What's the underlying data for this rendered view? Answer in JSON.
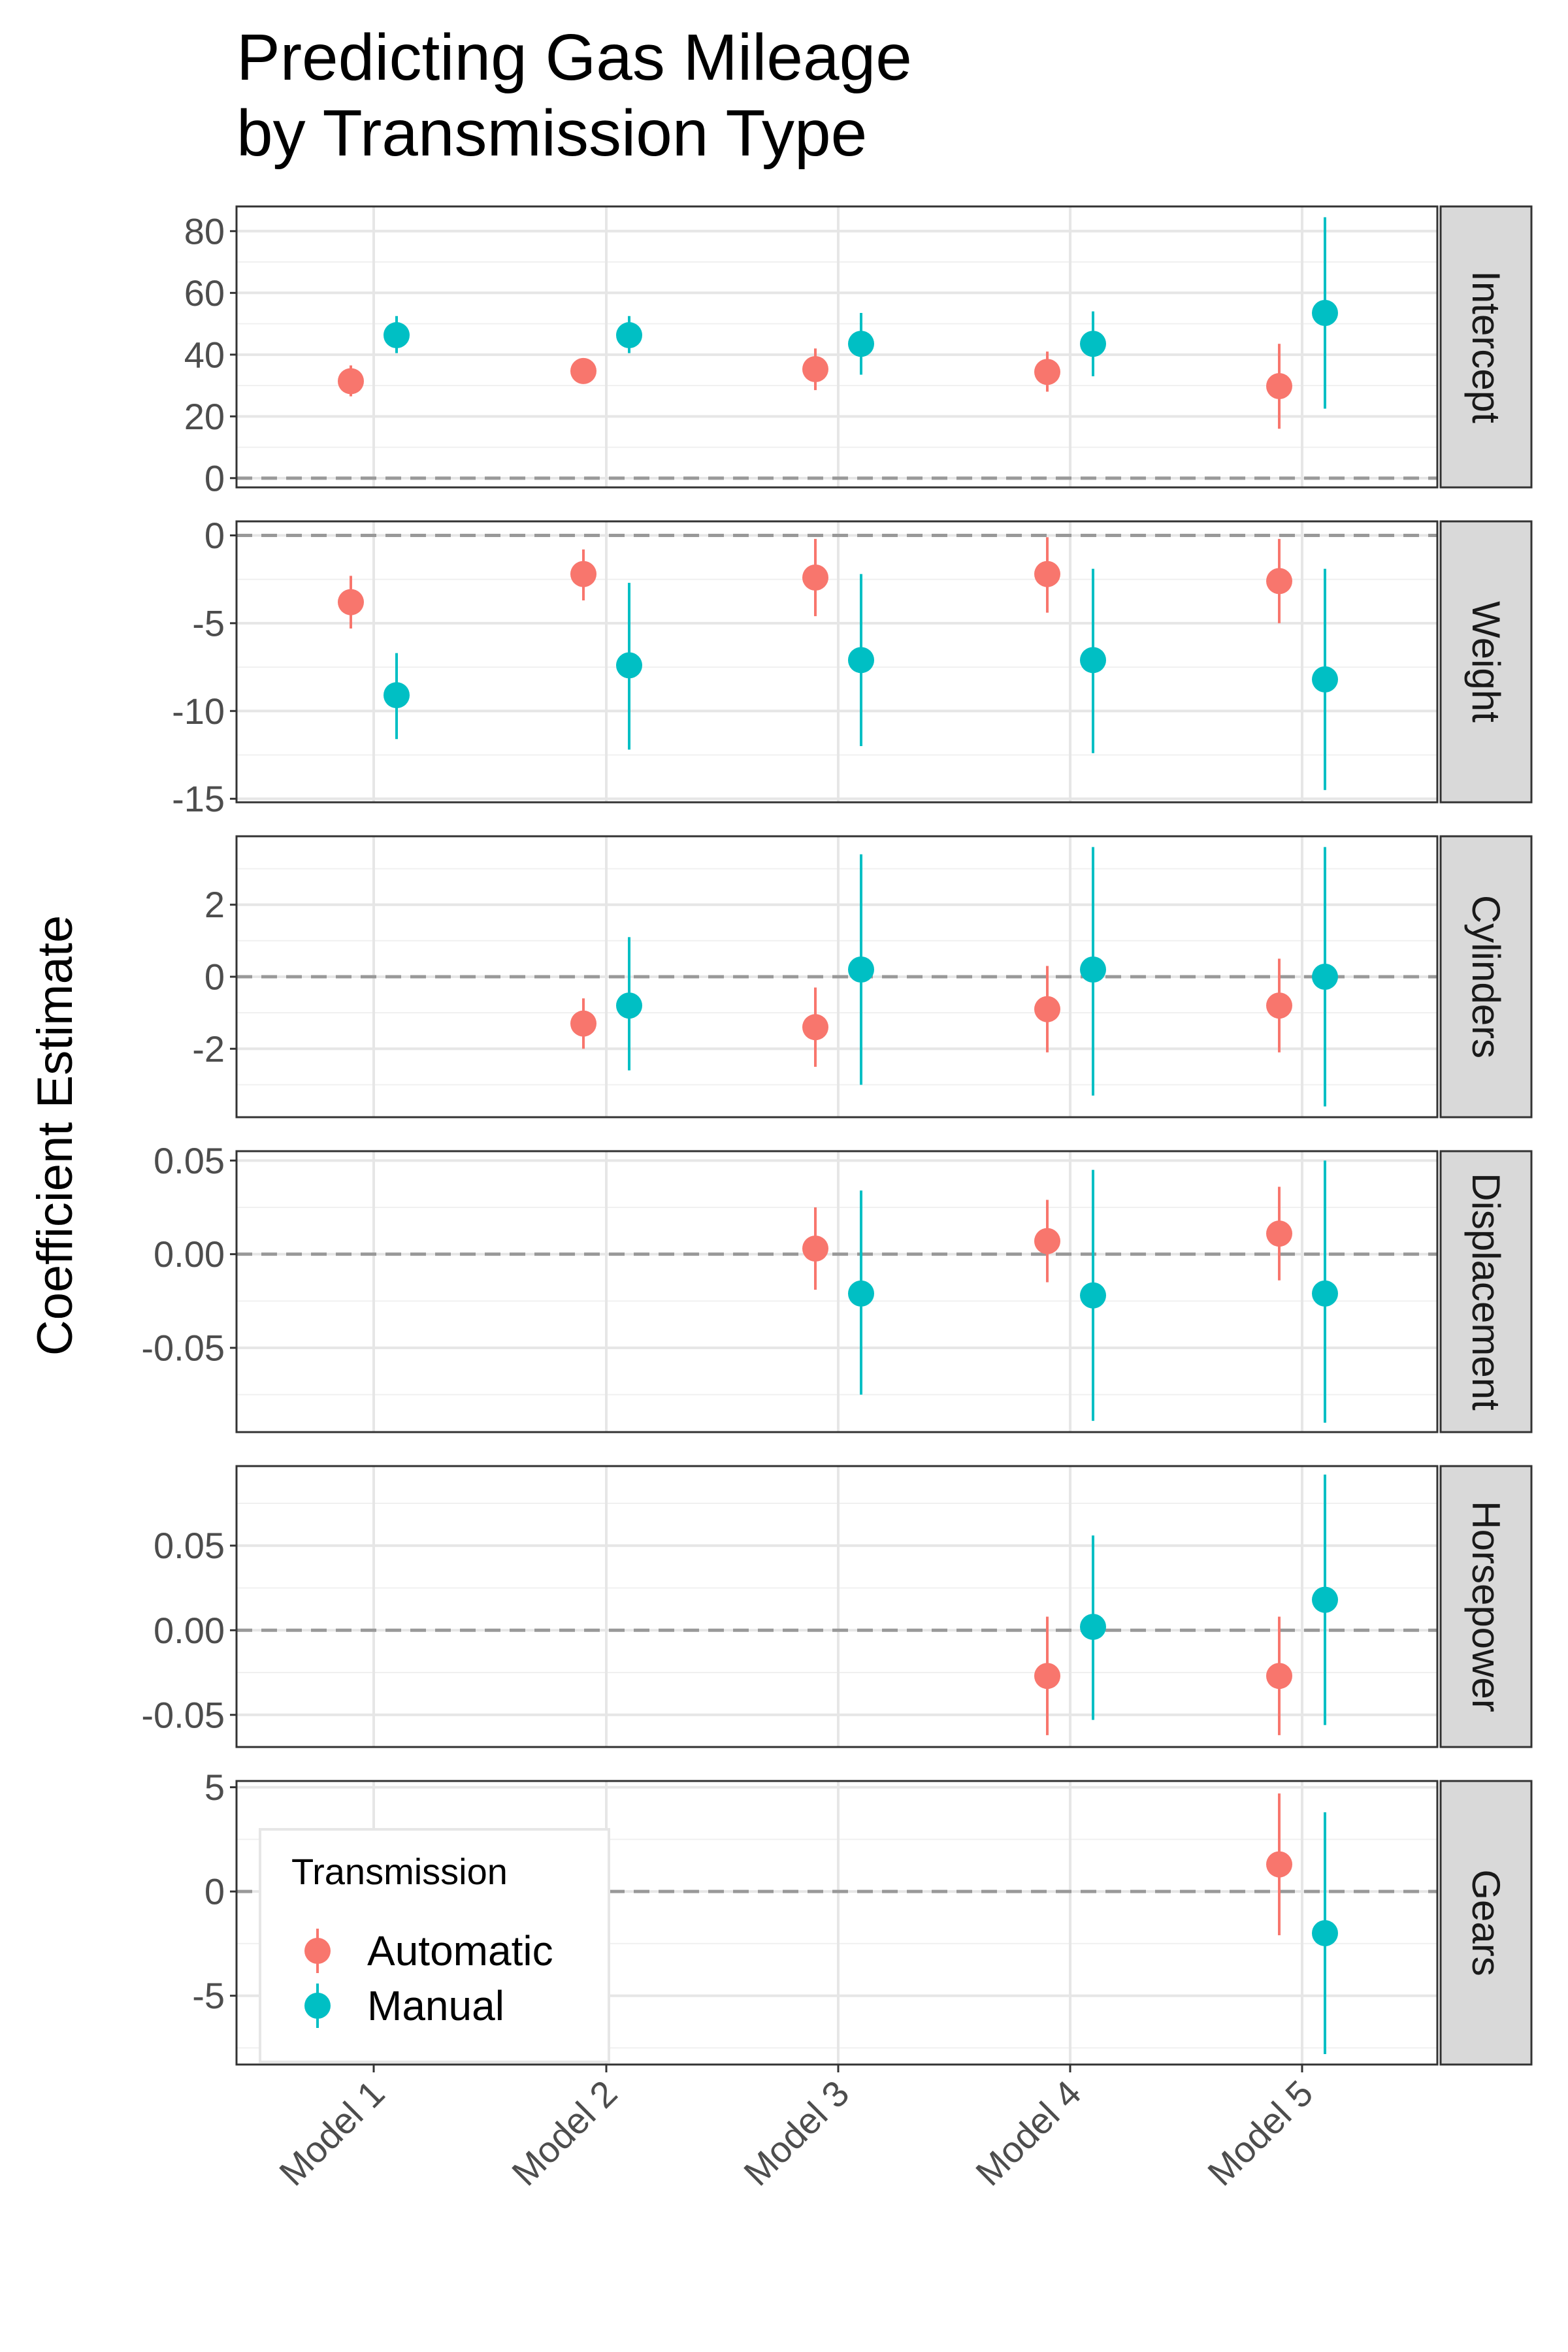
{
  "chart_data": {
    "type": "scatter",
    "subtype": "coefficient-plot-with-error-bars, faceted",
    "title_lines": [
      "Predicting Gas Mileage",
      "by Transmission Type"
    ],
    "xlabel": "",
    "ylabel": "Coefficient Estimate",
    "categories": [
      "Model 1",
      "Model 2",
      "Model 3",
      "Model 4",
      "Model 5"
    ],
    "legend": {
      "title": "Transmission",
      "position": "inside-bottom-left of last panel",
      "entries": [
        {
          "name": "Automatic",
          "color": "#F8766D"
        },
        {
          "name": "Manual",
          "color": "#00BFC4"
        }
      ]
    },
    "reference_line": 0,
    "grid": true,
    "panels": [
      {
        "name": "Intercept",
        "ylim": [
          -3,
          88
        ],
        "yticks": [
          0,
          20,
          40,
          60,
          80
        ],
        "ytick_labels": [
          "0",
          "20",
          "40",
          "60",
          "80"
        ],
        "series": [
          {
            "name": "Automatic",
            "points": [
              {
                "model": "Model 1",
                "est": 31.4,
                "lo": 26.5,
                "hi": 36.5
              },
              {
                "model": "Model 2",
                "est": 34.7,
                "lo": 32.0,
                "hi": 37.5
              },
              {
                "model": "Model 3",
                "est": 35.3,
                "lo": 28.5,
                "hi": 42.0
              },
              {
                "model": "Model 4",
                "est": 34.4,
                "lo": 28.0,
                "hi": 41.0
              },
              {
                "model": "Model 5",
                "est": 29.8,
                "lo": 16.0,
                "hi": 43.5
              }
            ]
          },
          {
            "name": "Manual",
            "points": [
              {
                "model": "Model 1",
                "est": 46.3,
                "lo": 40.5,
                "hi": 52.5
              },
              {
                "model": "Model 2",
                "est": 46.3,
                "lo": 40.5,
                "hi": 52.5
              },
              {
                "model": "Model 3",
                "est": 43.5,
                "lo": 33.5,
                "hi": 53.5
              },
              {
                "model": "Model 4",
                "est": 43.5,
                "lo": 33.0,
                "hi": 54.0
              },
              {
                "model": "Model 5",
                "est": 53.5,
                "lo": 22.5,
                "hi": 84.5
              }
            ]
          }
        ]
      },
      {
        "name": "Weight",
        "ylim": [
          -15.2,
          0.8
        ],
        "yticks": [
          0,
          -5,
          -10,
          -15
        ],
        "ytick_labels": [
          "0",
          "-5",
          "-10",
          "-15"
        ],
        "series": [
          {
            "name": "Automatic",
            "points": [
              {
                "model": "Model 1",
                "est": -3.8,
                "lo": -5.3,
                "hi": -2.3
              },
              {
                "model": "Model 2",
                "est": -2.2,
                "lo": -3.7,
                "hi": -0.8
              },
              {
                "model": "Model 3",
                "est": -2.4,
                "lo": -4.6,
                "hi": -0.2
              },
              {
                "model": "Model 4",
                "est": -2.2,
                "lo": -4.4,
                "hi": -0.1
              },
              {
                "model": "Model 5",
                "est": -2.6,
                "lo": -5.0,
                "hi": -0.2
              }
            ]
          },
          {
            "name": "Manual",
            "points": [
              {
                "model": "Model 1",
                "est": -9.1,
                "lo": -11.6,
                "hi": -6.7
              },
              {
                "model": "Model 2",
                "est": -7.4,
                "lo": -12.2,
                "hi": -2.7
              },
              {
                "model": "Model 3",
                "est": -7.1,
                "lo": -12.0,
                "hi": -2.2
              },
              {
                "model": "Model 4",
                "est": -7.1,
                "lo": -12.4,
                "hi": -1.9
              },
              {
                "model": "Model 5",
                "est": -8.2,
                "lo": -14.5,
                "hi": -1.9
              }
            ]
          }
        ]
      },
      {
        "name": "Cylinders",
        "ylim": [
          -3.9,
          3.9
        ],
        "yticks": [
          2,
          0,
          -2
        ],
        "ytick_labels": [
          "2",
          "0",
          "-2"
        ],
        "series": [
          {
            "name": "Automatic",
            "points": [
              {
                "model": "Model 2",
                "est": -1.3,
                "lo": -2.0,
                "hi": -0.6
              },
              {
                "model": "Model 3",
                "est": -1.4,
                "lo": -2.5,
                "hi": -0.3
              },
              {
                "model": "Model 4",
                "est": -0.9,
                "lo": -2.1,
                "hi": 0.3
              },
              {
                "model": "Model 5",
                "est": -0.8,
                "lo": -2.1,
                "hi": 0.5
              }
            ]
          },
          {
            "name": "Manual",
            "points": [
              {
                "model": "Model 2",
                "est": -0.8,
                "lo": -2.6,
                "hi": 1.1
              },
              {
                "model": "Model 3",
                "est": 0.2,
                "lo": -3.0,
                "hi": 3.4
              },
              {
                "model": "Model 4",
                "est": 0.2,
                "lo": -3.3,
                "hi": 3.6
              },
              {
                "model": "Model 5",
                "est": 0.0,
                "lo": -3.6,
                "hi": 3.6
              }
            ]
          }
        ]
      },
      {
        "name": "Displacement",
        "ylim": [
          -0.095,
          0.055
        ],
        "yticks": [
          0.05,
          0.0,
          -0.05
        ],
        "ytick_labels": [
          "0.05",
          "0.00",
          "-0.05"
        ],
        "series": [
          {
            "name": "Automatic",
            "points": [
              {
                "model": "Model 3",
                "est": 0.003,
                "lo": -0.019,
                "hi": 0.025
              },
              {
                "model": "Model 4",
                "est": 0.007,
                "lo": -0.015,
                "hi": 0.029
              },
              {
                "model": "Model 5",
                "est": 0.011,
                "lo": -0.014,
                "hi": 0.036
              }
            ]
          },
          {
            "name": "Manual",
            "points": [
              {
                "model": "Model 3",
                "est": -0.021,
                "lo": -0.075,
                "hi": 0.034
              },
              {
                "model": "Model 4",
                "est": -0.022,
                "lo": -0.089,
                "hi": 0.045
              },
              {
                "model": "Model 5",
                "est": -0.021,
                "lo": -0.09,
                "hi": 0.05
              }
            ]
          }
        ]
      },
      {
        "name": "Horsepower",
        "ylim": [
          -0.069,
          0.097
        ],
        "yticks": [
          0.05,
          0.0,
          -0.05
        ],
        "ytick_labels": [
          "0.05",
          "0.00",
          "-0.05"
        ],
        "series": [
          {
            "name": "Automatic",
            "points": [
              {
                "model": "Model 4",
                "est": -0.027,
                "lo": -0.062,
                "hi": 0.008
              },
              {
                "model": "Model 5",
                "est": -0.027,
                "lo": -0.062,
                "hi": 0.008
              }
            ]
          },
          {
            "name": "Manual",
            "points": [
              {
                "model": "Model 4",
                "est": 0.002,
                "lo": -0.053,
                "hi": 0.056
              },
              {
                "model": "Model 5",
                "est": 0.018,
                "lo": -0.056,
                "hi": 0.092
              }
            ]
          }
        ]
      },
      {
        "name": "Gears",
        "ylim": [
          -8.3,
          5.3
        ],
        "yticks": [
          5,
          0,
          -5
        ],
        "ytick_labels": [
          "5",
          "0",
          "-5"
        ],
        "series": [
          {
            "name": "Automatic",
            "points": [
              {
                "model": "Model 5",
                "est": 1.3,
                "lo": -2.1,
                "hi": 4.7
              }
            ]
          },
          {
            "name": "Manual",
            "points": [
              {
                "model": "Model 5",
                "est": -2.0,
                "lo": -7.8,
                "hi": 3.8
              }
            ]
          }
        ]
      }
    ]
  }
}
